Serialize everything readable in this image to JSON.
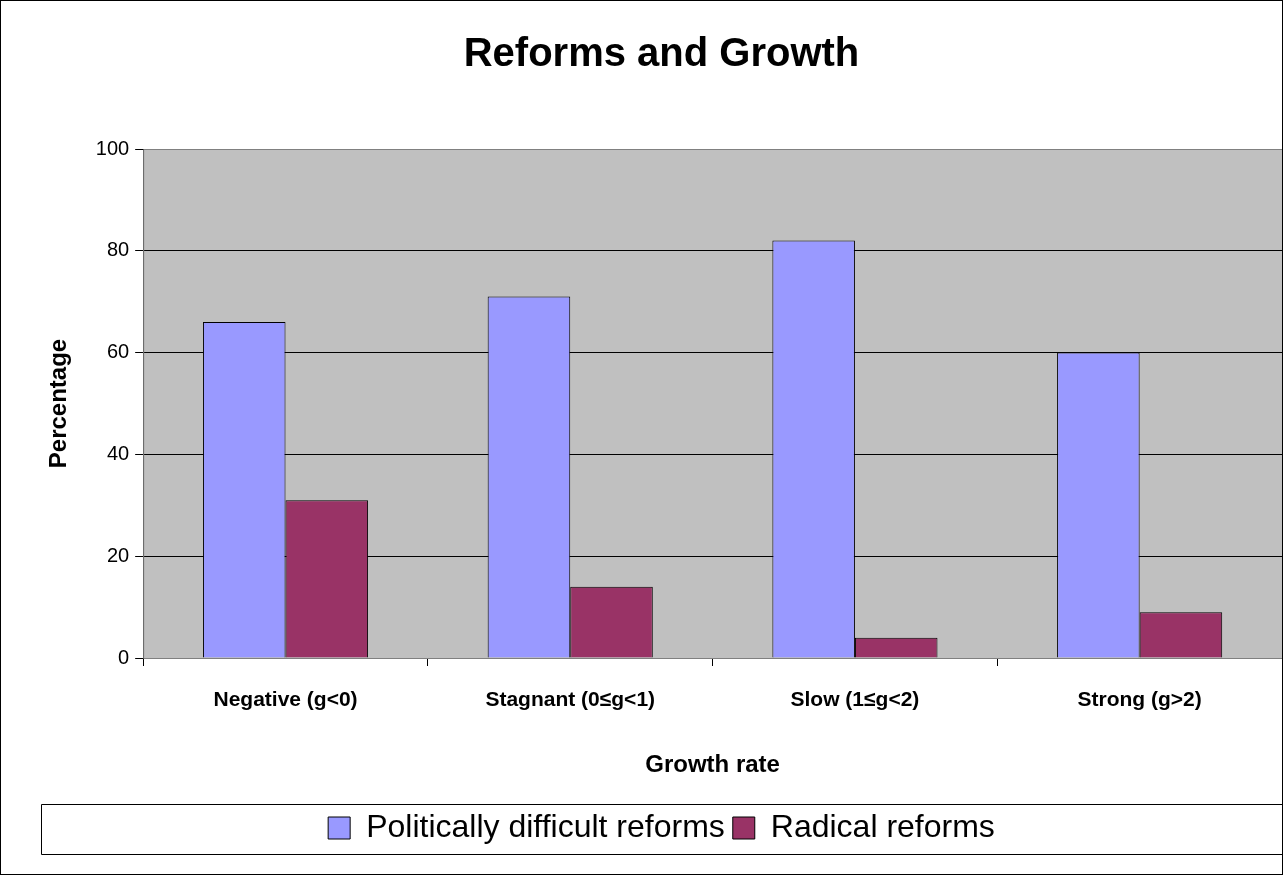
{
  "chart_data": {
    "type": "bar",
    "title": "Reforms and Growth",
    "xlabel": "Growth rate",
    "ylabel": "Percentage",
    "categories": [
      "Negative (g<0)",
      "Stagnant (0≤g<1)",
      "Slow (1≤g<2)",
      "Strong (g>2)"
    ],
    "series": [
      {
        "name": "Politically difficult reforms",
        "color": "#9999ff",
        "values": [
          66,
          71,
          82,
          60
        ]
      },
      {
        "name": "Radical reforms",
        "color": "#993366",
        "values": [
          31,
          14,
          4,
          9
        ]
      }
    ],
    "ylim": [
      0,
      100
    ],
    "yticks": [
      0,
      20,
      40,
      60,
      80,
      100
    ],
    "grid": "y",
    "legend": "bottom"
  }
}
